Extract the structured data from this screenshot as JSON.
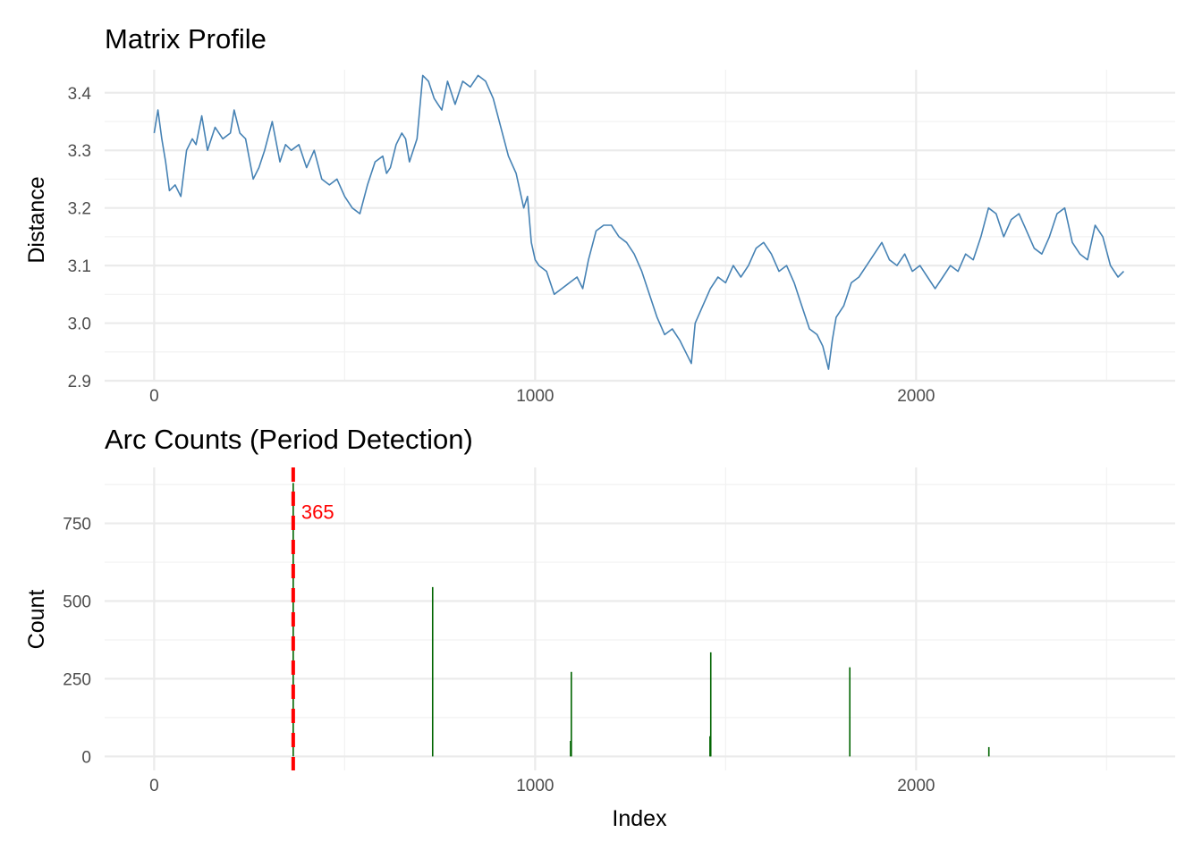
{
  "figure": {
    "x_axis_label": "Index",
    "colors": {
      "line": "#4682b4",
      "bars": "#006400",
      "annotation": "#ff0000"
    }
  },
  "chart_data": [
    {
      "type": "line",
      "title": "Matrix Profile",
      "xlabel": "",
      "ylabel": "Distance",
      "xlim": [
        -130,
        2680
      ],
      "ylim": [
        2.9,
        3.44
      ],
      "x_ticks": [
        0,
        1000,
        2000
      ],
      "x_tick_labels": [
        "0",
        "1000",
        "2000"
      ],
      "y_ticks": [
        2.9,
        3.0,
        3.1,
        3.2,
        3.3,
        3.4
      ],
      "y_tick_labels": [
        "2.9",
        "3.0",
        "3.1",
        "3.2",
        "3.3",
        "3.4"
      ],
      "grid": true,
      "series": [
        {
          "color": "#4682b4",
          "x": [
            0,
            10,
            20,
            30,
            40,
            55,
            70,
            85,
            100,
            110,
            125,
            140,
            160,
            180,
            200,
            210,
            225,
            240,
            260,
            275,
            290,
            310,
            330,
            345,
            360,
            380,
            400,
            420,
            440,
            460,
            480,
            500,
            520,
            540,
            560,
            580,
            600,
            610,
            620,
            635,
            650,
            660,
            670,
            690,
            705,
            720,
            735,
            745,
            755,
            770,
            790,
            810,
            830,
            850,
            870,
            890,
            910,
            930,
            950,
            970,
            980,
            990,
            1000,
            1010,
            1030,
            1050,
            1070,
            1090,
            1110,
            1125,
            1140,
            1160,
            1180,
            1200,
            1220,
            1240,
            1260,
            1280,
            1300,
            1320,
            1340,
            1360,
            1380,
            1395,
            1410,
            1420,
            1440,
            1460,
            1480,
            1500,
            1520,
            1540,
            1560,
            1580,
            1600,
            1620,
            1640,
            1660,
            1680,
            1700,
            1720,
            1740,
            1755,
            1770,
            1780,
            1790,
            1810,
            1830,
            1850,
            1870,
            1890,
            1910,
            1930,
            1950,
            1970,
            1990,
            2010,
            2030,
            2050,
            2070,
            2090,
            2110,
            2130,
            2150,
            2170,
            2190,
            2210,
            2230,
            2250,
            2270,
            2290,
            2310,
            2330,
            2350,
            2370,
            2390,
            2410,
            2430,
            2450,
            2470,
            2490,
            2510,
            2530,
            2545
          ],
          "y": [
            3.33,
            3.37,
            3.32,
            3.28,
            3.23,
            3.24,
            3.22,
            3.3,
            3.32,
            3.31,
            3.36,
            3.3,
            3.34,
            3.32,
            3.33,
            3.37,
            3.33,
            3.32,
            3.25,
            3.27,
            3.3,
            3.35,
            3.28,
            3.31,
            3.3,
            3.31,
            3.27,
            3.3,
            3.25,
            3.24,
            3.25,
            3.22,
            3.2,
            3.19,
            3.24,
            3.28,
            3.29,
            3.26,
            3.27,
            3.31,
            3.33,
            3.32,
            3.28,
            3.32,
            3.43,
            3.42,
            3.39,
            3.38,
            3.37,
            3.42,
            3.38,
            3.42,
            3.41,
            3.43,
            3.42,
            3.39,
            3.34,
            3.29,
            3.26,
            3.2,
            3.22,
            3.14,
            3.11,
            3.1,
            3.09,
            3.05,
            3.06,
            3.07,
            3.08,
            3.06,
            3.11,
            3.16,
            3.17,
            3.17,
            3.15,
            3.14,
            3.12,
            3.09,
            3.05,
            3.01,
            2.98,
            2.99,
            2.97,
            2.95,
            2.93,
            3.0,
            3.03,
            3.06,
            3.08,
            3.07,
            3.1,
            3.08,
            3.1,
            3.13,
            3.14,
            3.12,
            3.09,
            3.1,
            3.07,
            3.03,
            2.99,
            2.98,
            2.96,
            2.92,
            2.97,
            3.01,
            3.03,
            3.07,
            3.08,
            3.1,
            3.12,
            3.14,
            3.11,
            3.1,
            3.12,
            3.09,
            3.1,
            3.08,
            3.06,
            3.08,
            3.1,
            3.09,
            3.12,
            3.11,
            3.15,
            3.2,
            3.19,
            3.15,
            3.18,
            3.19,
            3.16,
            3.13,
            3.12,
            3.15,
            3.19,
            3.2,
            3.14,
            3.12,
            3.11,
            3.17,
            3.15,
            3.1,
            3.08,
            3.09
          ]
        }
      ]
    },
    {
      "type": "bar",
      "title": "Arc Counts (Period Detection)",
      "xlabel": "Index",
      "ylabel": "Count",
      "xlim": [
        -130,
        2680
      ],
      "ylim": [
        -45,
        930
      ],
      "x_ticks": [
        0,
        1000,
        2000
      ],
      "x_tick_labels": [
        "0",
        "1000",
        "2000"
      ],
      "y_ticks": [
        0,
        250,
        500,
        750
      ],
      "y_tick_labels": [
        "0",
        "250",
        "500",
        "750"
      ],
      "grid": true,
      "series": [
        {
          "color": "#006400",
          "x": [
            365,
            731,
            1093,
            1095,
            1459,
            1461,
            1826,
            2191
          ],
          "values": [
            880,
            545,
            50,
            272,
            65,
            335,
            287,
            30
          ]
        }
      ],
      "annotations": [
        {
          "type": "vline",
          "x": 365,
          "color": "#ff0000",
          "style": "dashed",
          "label": "365"
        }
      ]
    }
  ]
}
